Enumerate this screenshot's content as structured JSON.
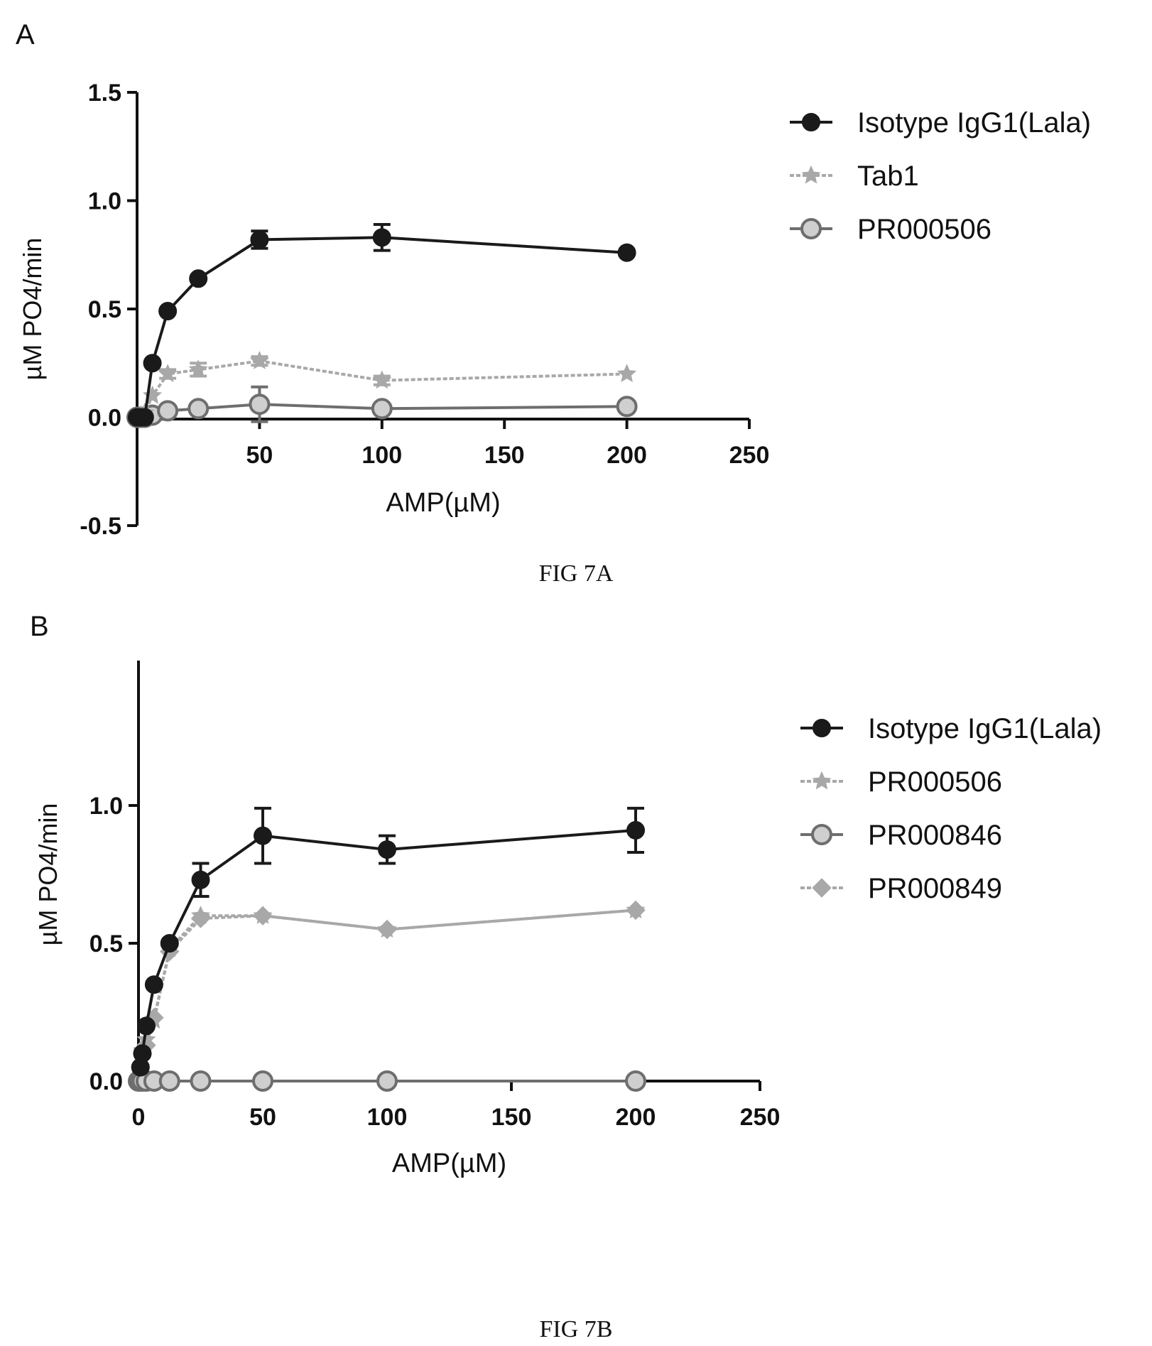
{
  "figures": [
    {
      "panel_label": "A",
      "caption": "FIG 7A"
    },
    {
      "panel_label": "B",
      "caption": "FIG 7B"
    }
  ],
  "colors": {
    "isotype": "#1a1a1a",
    "light_gray": "#a8a8a8",
    "mid_gray": "#6e6e6e"
  },
  "chart_data": [
    {
      "type": "line",
      "ylabel": "µM PO4/min",
      "xlabel": "AMP(µM)",
      "xlim": [
        0,
        250
      ],
      "ylim": [
        -0.5,
        1.5
      ],
      "x_ticks": [
        50,
        100,
        150,
        200,
        250
      ],
      "y_ticks": [
        -0.5,
        0.0,
        0.5,
        1.0,
        1.5
      ],
      "x_tick_labels": [
        "50",
        "100",
        "150",
        "200",
        "250"
      ],
      "y_tick_labels": [
        "-0.5",
        "0.0",
        "0.5",
        "1.0",
        "1.5"
      ],
      "legend": "right",
      "series": [
        {
          "name": "Isotype IgG1(Lala)",
          "marker": "filled-circle",
          "color": "#1a1a1a",
          "x": [
            0,
            0.78,
            1.56,
            3.13,
            6.25,
            12.5,
            25,
            50,
            100,
            200
          ],
          "y": [
            0.0,
            0.0,
            0.0,
            0.0,
            0.25,
            0.49,
            0.64,
            0.82,
            0.83,
            0.76
          ],
          "err": [
            0,
            0,
            0,
            0,
            0,
            0,
            0,
            0.04,
            0.06,
            0
          ]
        },
        {
          "name": "Tab1",
          "marker": "star",
          "color": "#a8a8a8",
          "x": [
            0,
            0.78,
            1.56,
            3.13,
            6.25,
            12.5,
            25,
            50,
            100,
            200
          ],
          "y": [
            0.0,
            0.0,
            0.01,
            0.02,
            0.1,
            0.2,
            0.22,
            0.26,
            0.17,
            0.2
          ],
          "err": [
            0,
            0,
            0,
            0,
            0,
            0.02,
            0.03,
            0.02,
            0.02,
            0
          ]
        },
        {
          "name": "PR000506",
          "marker": "open-circle",
          "color": "#6e6e6e",
          "x": [
            0,
            0.78,
            1.56,
            3.13,
            6.25,
            12.5,
            25,
            50,
            100,
            200
          ],
          "y": [
            0.0,
            0.0,
            0.0,
            0.0,
            0.01,
            0.03,
            0.04,
            0.06,
            0.04,
            0.05
          ],
          "err": [
            0,
            0,
            0,
            0,
            0,
            0.02,
            0.02,
            0.08,
            0.01,
            0.02
          ]
        }
      ]
    },
    {
      "type": "line",
      "ylabel": "µM PO4/min",
      "xlabel": "AMP(µM)",
      "xlim": [
        0,
        250
      ],
      "ylim": [
        0.0,
        1.5
      ],
      "x_ticks": [
        0,
        50,
        100,
        150,
        200,
        250
      ],
      "y_ticks": [
        0.0,
        0.5,
        1.0
      ],
      "x_tick_labels": [
        "0",
        "50",
        "100",
        "150",
        "200",
        "250"
      ],
      "y_tick_labels": [
        "0.0",
        "0.5",
        "1.0"
      ],
      "legend": "right",
      "series": [
        {
          "name": "Isotype IgG1(Lala)",
          "marker": "filled-circle",
          "color": "#1a1a1a",
          "x": [
            0.78,
            1.56,
            3.13,
            6.25,
            12.5,
            25,
            50,
            100,
            200
          ],
          "y": [
            0.05,
            0.1,
            0.2,
            0.35,
            0.5,
            0.73,
            0.89,
            0.84,
            0.91
          ],
          "err": [
            0,
            0,
            0,
            0,
            0,
            0.06,
            0.1,
            0.05,
            0.08
          ]
        },
        {
          "name": "PR000506",
          "marker": "star",
          "color": "#a8a8a8",
          "x": [
            0.78,
            1.56,
            3.13,
            6.25,
            12.5,
            25,
            50,
            100,
            200
          ],
          "y": [
            0.05,
            0.11,
            0.15,
            0.22,
            0.48,
            0.6,
            0.6,
            0.55,
            0.62
          ],
          "err": [
            0,
            0,
            0,
            0,
            0,
            0,
            0,
            0,
            0
          ]
        },
        {
          "name": "PR000846",
          "marker": "open-circle",
          "color": "#6e6e6e",
          "x": [
            0,
            0.78,
            1.56,
            3.13,
            6.25,
            12.5,
            25,
            50,
            100,
            200
          ],
          "y": [
            0,
            0,
            0,
            0,
            0,
            0,
            0,
            0,
            0,
            0
          ],
          "err": [
            0,
            0,
            0,
            0,
            0,
            0,
            0,
            0,
            0,
            0
          ]
        },
        {
          "name": "PR000849",
          "marker": "diamond",
          "color": "#a8a8a8",
          "x": [
            0.78,
            1.56,
            3.13,
            6.25,
            12.5,
            25,
            50,
            100,
            200
          ],
          "y": [
            0.05,
            0.1,
            0.13,
            0.23,
            0.47,
            0.59,
            0.6,
            0.55,
            0.62
          ],
          "err": [
            0,
            0,
            0,
            0,
            0,
            0,
            0,
            0,
            0
          ]
        }
      ]
    }
  ]
}
